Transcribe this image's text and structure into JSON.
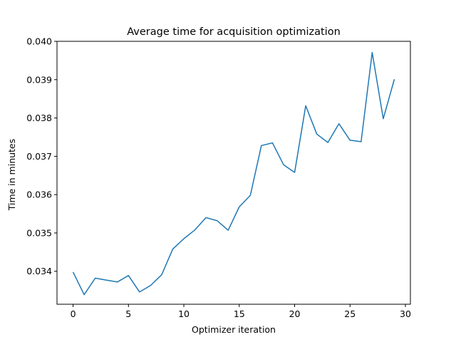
{
  "chart_data": {
    "type": "line",
    "title": "Average time for acquisition optimization",
    "xlabel": "Optimizer iteration",
    "ylabel": "Time in minutes",
    "xlim": [
      -1.45,
      30.45
    ],
    "ylim": [
      0.03314,
      0.04
    ],
    "xticks": [
      0,
      5,
      10,
      15,
      20,
      25,
      30
    ],
    "xtick_labels": [
      "0",
      "5",
      "10",
      "15",
      "20",
      "25",
      "30"
    ],
    "yticks": [
      0.034,
      0.035,
      0.036,
      0.037,
      0.038,
      0.039,
      0.04
    ],
    "ytick_labels": [
      "0.034",
      "0.035",
      "0.036",
      "0.037",
      "0.038",
      "0.039",
      "0.040"
    ],
    "grid": false,
    "series": [
      {
        "color": "#1f77b4",
        "x": [
          0,
          1,
          2,
          3,
          4,
          5,
          6,
          7,
          8,
          9,
          10,
          11,
          12,
          13,
          14,
          15,
          16,
          17,
          18,
          19,
          20,
          21,
          22,
          23,
          24,
          25,
          26,
          27,
          28,
          29
        ],
        "y": [
          0.03398,
          0.03339,
          0.03382,
          0.03377,
          0.03372,
          0.03389,
          0.03346,
          0.03363,
          0.03391,
          0.03458,
          0.03485,
          0.03508,
          0.0354,
          0.03532,
          0.03507,
          0.03568,
          0.03598,
          0.03728,
          0.03735,
          0.03678,
          0.03658,
          0.03832,
          0.03758,
          0.03736,
          0.03785,
          0.03742,
          0.03738,
          0.03971,
          0.03798,
          0.03901
        ]
      }
    ]
  }
}
